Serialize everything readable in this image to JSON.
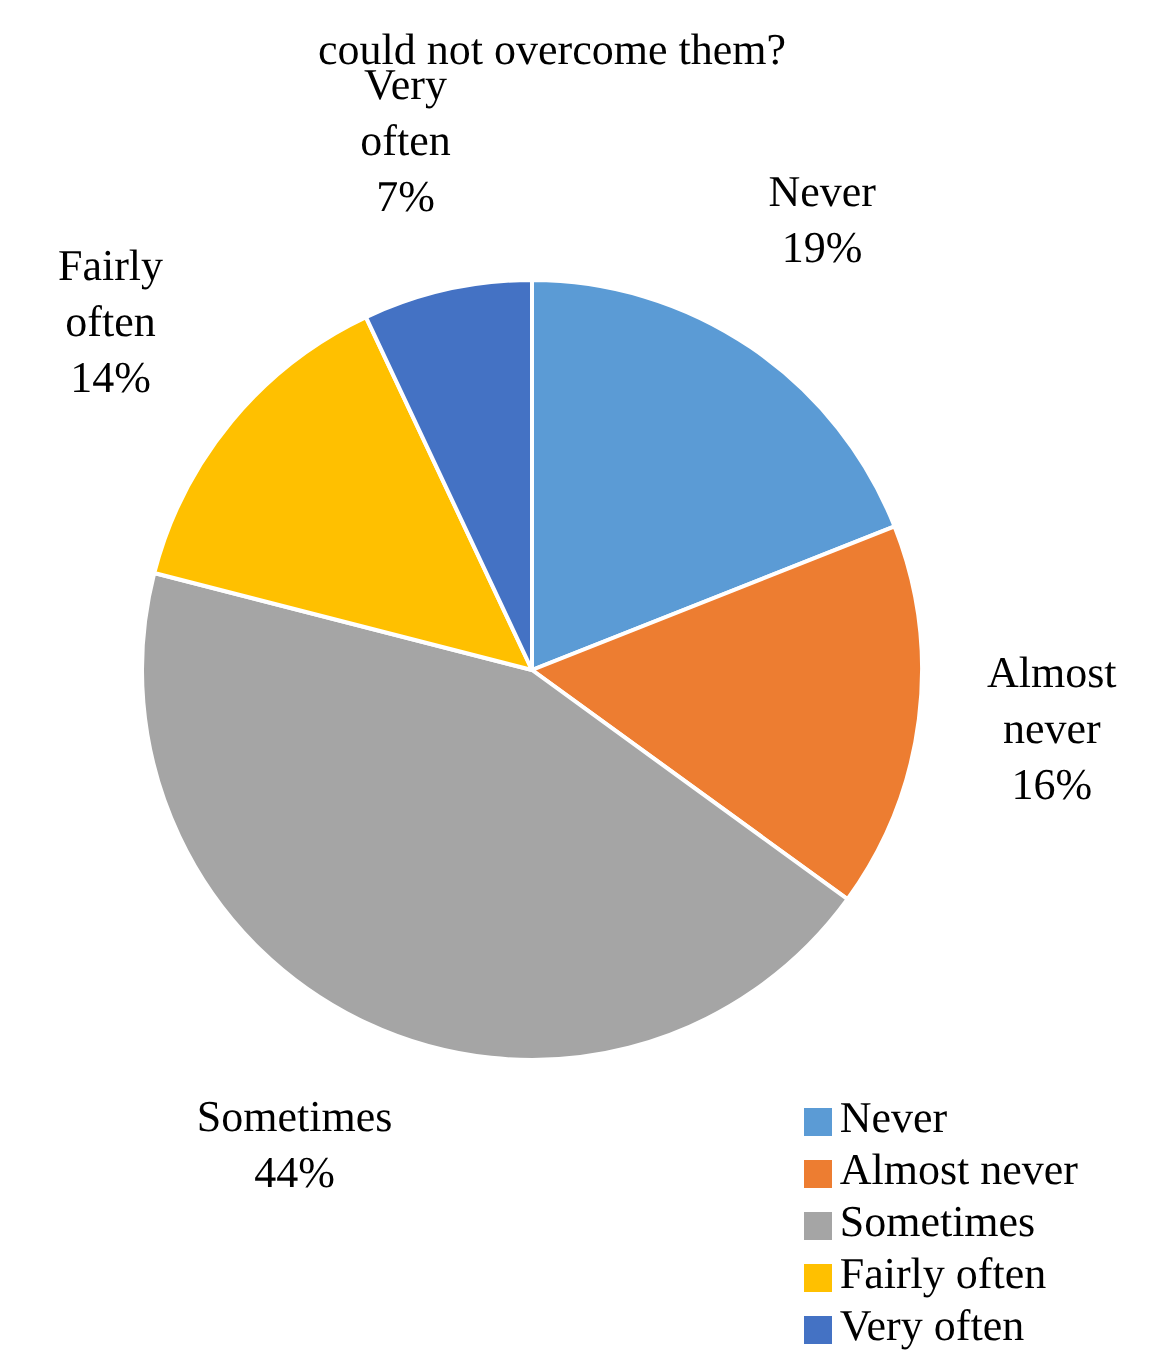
{
  "chart_data": {
    "type": "pie",
    "title": "could not overcome them?",
    "categories": [
      "Never",
      "Almost never",
      "Sometimes",
      "Fairly often",
      "Very often"
    ],
    "values": [
      19,
      16,
      44,
      14,
      7
    ],
    "colors": [
      "#5b9bd5",
      "#ed7d31",
      "#a5a5a5",
      "#ffc000",
      "#4472c4"
    ],
    "value_labels": [
      "19%",
      "16%",
      "44%",
      "14%",
      "7%"
    ],
    "legend": "bottom right"
  }
}
